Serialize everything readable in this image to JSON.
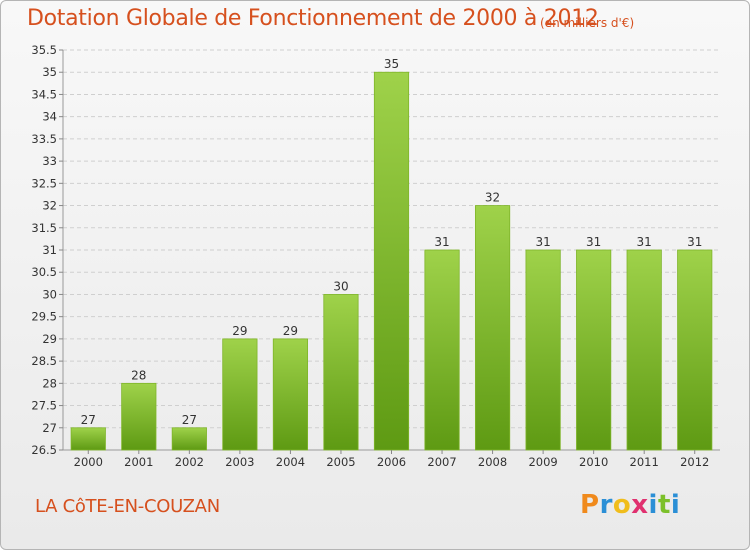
{
  "header": {
    "title": "Dotation Globale de Fonctionnement de 2000 à 2012",
    "unit": "(en milliers d'€)"
  },
  "commune": "LA CôTE-EN-COUZAN",
  "logo": {
    "text": "Proxiti",
    "letter_colors": [
      "#f08a1c",
      "#2b8fd6",
      "#f0bd1c",
      "#e0306f",
      "#2b8fd6",
      "#7cc02a",
      "#2b8fd6"
    ]
  },
  "colors": {
    "title": "#d6501e",
    "bar_light": "#9fd24a",
    "bar_dark": "#5e9a13",
    "grid": "#cfcfcf"
  },
  "chart_data": {
    "type": "bar",
    "title": "Dotation Globale de Fonctionnement de 2000 à 2012",
    "subtitle": "(en milliers d'€)",
    "xlabel": "",
    "ylabel": "",
    "categories": [
      "2000",
      "2001",
      "2002",
      "2003",
      "2004",
      "2005",
      "2006",
      "2007",
      "2008",
      "2009",
      "2010",
      "2011",
      "2012"
    ],
    "values": [
      27,
      28,
      27,
      29,
      29,
      30,
      35,
      31,
      32,
      31,
      31,
      31,
      31
    ],
    "ylim": [
      26.5,
      35.5
    ],
    "yticks": [
      "26.5",
      "27",
      "27.5",
      "28",
      "28.5",
      "29",
      "29.5",
      "30",
      "30.5",
      "31",
      "31.5",
      "32",
      "32.5",
      "33",
      "33.5",
      "34",
      "34.5",
      "35",
      "35.5"
    ],
    "grid": true,
    "legend": "none"
  }
}
